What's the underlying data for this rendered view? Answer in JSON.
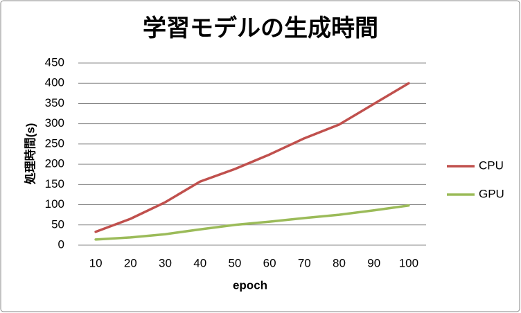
{
  "chart_data": {
    "type": "line",
    "title": "学習モデルの生成時間",
    "x_label": "epoch",
    "y_label": "処理時間(s)",
    "categories": [
      10,
      20,
      30,
      40,
      50,
      60,
      70,
      80,
      90,
      100
    ],
    "series": [
      {
        "name": "CPU",
        "color": "#c0504d",
        "values": [
          33,
          65,
          106,
          157,
          188,
          224,
          264,
          298,
          349,
          400
        ]
      },
      {
        "name": "GPU",
        "color": "#9bbb59",
        "values": [
          14,
          19,
          27,
          39,
          50,
          58,
          67,
          75,
          86,
          98
        ]
      }
    ],
    "ylim": [
      0,
      450
    ],
    "yticks": [
      0,
      50,
      100,
      150,
      200,
      250,
      300,
      350,
      400,
      450
    ],
    "grid": true,
    "legend": "right"
  }
}
